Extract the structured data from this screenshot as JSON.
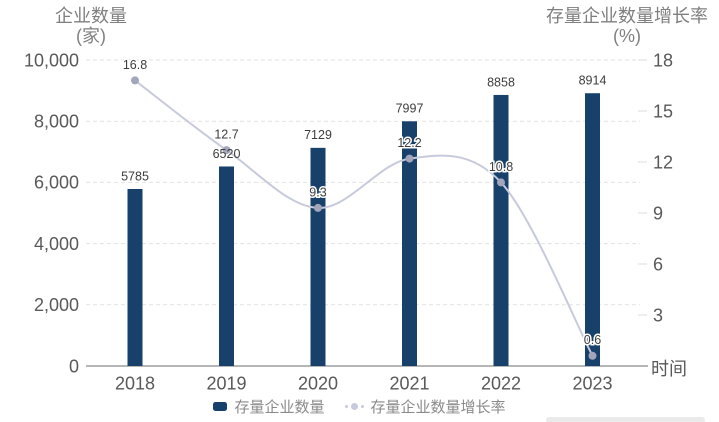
{
  "chart_data": {
    "type": "bar",
    "subtype": "combo-bar-line-dual-axis",
    "categories": [
      "2018",
      "2019",
      "2020",
      "2021",
      "2022",
      "2023"
    ],
    "series": [
      {
        "name": "存量企业数量",
        "type": "bar",
        "axis": "left",
        "values": [
          5785,
          6520,
          7129,
          7997,
          8858,
          8914
        ],
        "color": "#17406B"
      },
      {
        "name": "存量企业数量增长率",
        "type": "line",
        "axis": "right",
        "values": [
          16.8,
          12.7,
          9.3,
          12.2,
          10.8,
          0.6
        ],
        "color": "#C7CADC",
        "marker_color": "#A3A6BA"
      }
    ],
    "left_axis": {
      "title_line1": "企业数量",
      "title_line2": "(家)",
      "ticks": [
        "10,000",
        "8,000",
        "6,000",
        "4,000",
        "2,000",
        "0"
      ],
      "min": 0,
      "max": 10000,
      "step": 2000
    },
    "right_axis": {
      "title_line1": "存量企业数量增长率",
      "title_line2": "(%)",
      "ticks": [
        "18",
        "15",
        "12",
        "9",
        "6",
        "3"
      ],
      "min": 0,
      "max": 18,
      "step": 3
    },
    "x_axis": {
      "label": "时间"
    },
    "grid": "horizontal dashed",
    "legend_position": "bottom",
    "text_colors": {
      "tick": "#595959",
      "title": "#7f7f7f",
      "data_label": "#3d3d3d",
      "legend": "#8a8a8a"
    }
  }
}
